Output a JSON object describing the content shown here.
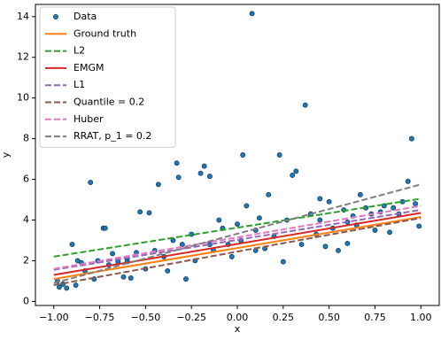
{
  "chart_data": {
    "type": "scatter",
    "xlabel": "x",
    "ylabel": "y",
    "xlim": [
      -1.1,
      1.1
    ],
    "ylim": [
      -0.2,
      14.6
    ],
    "xticks": [
      {
        "value": -1,
        "label": "−1.00"
      },
      {
        "value": -0.75,
        "label": "−0.75"
      },
      {
        "value": -0.5,
        "label": "−0.50"
      },
      {
        "value": -0.25,
        "label": "−0.25"
      },
      {
        "value": 0,
        "label": "0.00"
      },
      {
        "value": 0.25,
        "label": "0.25"
      },
      {
        "value": 0.5,
        "label": "0.50"
      },
      {
        "value": 0.75,
        "label": "0.75"
      },
      {
        "value": 1,
        "label": "1.00"
      }
    ],
    "yticks": [
      0,
      2,
      4,
      6,
      8,
      10,
      12,
      14
    ],
    "legend": "upper left",
    "series": [
      {
        "name": "Data",
        "type": "scatter",
        "color": "#1f77b4",
        "x": [
          -0.98,
          -0.97,
          -0.95,
          -0.93,
          -0.9,
          -0.88,
          -0.85,
          -0.83,
          -0.8,
          -0.78,
          -0.76,
          -0.73,
          -0.72,
          -0.7,
          -0.68,
          -0.65,
          -0.62,
          -0.6,
          -0.58,
          -0.55,
          -0.53,
          -0.5,
          -0.48,
          -0.45,
          -0.43,
          -0.4,
          -0.38,
          -0.35,
          -0.33,
          -0.32,
          -0.3,
          -0.28,
          -0.25,
          -0.23,
          -0.2,
          -0.18,
          -0.15,
          -0.13,
          -0.1,
          -0.08,
          -0.05,
          -0.03,
          0.0,
          0.02,
          0.03,
          0.05,
          0.08,
          0.1,
          0.12,
          0.15,
          0.17,
          0.2,
          0.23,
          0.25,
          0.27,
          0.3,
          0.32,
          0.35,
          0.37,
          0.4,
          0.43,
          0.45,
          0.48,
          0.5,
          0.52,
          0.55,
          0.58,
          0.6,
          0.63,
          0.65,
          0.67,
          0.7,
          0.73,
          0.75,
          0.78,
          0.8,
          0.83,
          0.85,
          0.88,
          0.9,
          0.93,
          0.95,
          0.97,
          0.99,
          -0.87,
          -0.6,
          0.1,
          0.45,
          -0.15,
          0.6
        ],
        "values": [
          1.0,
          0.7,
          0.85,
          0.65,
          2.8,
          0.8,
          1.9,
          1.5,
          5.85,
          1.1,
          2.0,
          3.6,
          3.6,
          1.8,
          2.35,
          1.95,
          1.2,
          2.1,
          1.15,
          2.4,
          4.4,
          1.6,
          4.35,
          2.5,
          5.75,
          2.2,
          1.5,
          3.0,
          6.8,
          6.1,
          2.8,
          1.1,
          3.3,
          2.0,
          6.3,
          6.65,
          6.15,
          2.5,
          4.0,
          3.6,
          2.8,
          2.2,
          3.8,
          3.0,
          7.2,
          4.7,
          14.15,
          3.5,
          4.1,
          2.6,
          5.25,
          3.2,
          7.2,
          1.95,
          4.0,
          6.2,
          6.4,
          2.8,
          9.65,
          4.3,
          3.3,
          5.05,
          2.7,
          4.9,
          3.6,
          2.5,
          4.5,
          2.85,
          4.2,
          3.75,
          5.25,
          4.6,
          4.3,
          3.5,
          4.4,
          4.7,
          3.4,
          4.6,
          4.3,
          4.9,
          5.9,
          8.0,
          4.8,
          3.7,
          2.0,
          1.95,
          2.5,
          4.0,
          2.8,
          3.9
        ]
      },
      {
        "name": "Ground truth",
        "type": "line",
        "dash": false,
        "color": "#ff7f0e",
        "x": [
          -1,
          1
        ],
        "values": [
          1.1,
          4.15
        ]
      },
      {
        "name": "L2",
        "type": "line",
        "dash": true,
        "color": "#2ca02c",
        "x": [
          -1,
          1
        ],
        "values": [
          2.2,
          5.05
        ]
      },
      {
        "name": "EMGM",
        "type": "line",
        "dash": false,
        "color": "#d62728",
        "x": [
          -1,
          1
        ],
        "values": [
          1.3,
          4.35
        ]
      },
      {
        "name": "L1",
        "type": "line",
        "dash": true,
        "color": "#9467bd",
        "x": [
          -1,
          1
        ],
        "values": [
          1.55,
          4.5
        ]
      },
      {
        "name": "Quantile = 0.2",
        "type": "line",
        "dash": true,
        "color": "#8c564b",
        "x": [
          -1,
          1
        ],
        "values": [
          0.8,
          4.1
        ]
      },
      {
        "name": "Huber",
        "type": "line",
        "dash": true,
        "color": "#e377c2",
        "x": [
          -1,
          1
        ],
        "values": [
          1.6,
          4.7
        ]
      },
      {
        "name": "RRAT, p_1 = 0.2",
        "type": "line",
        "dash": true,
        "color": "#7f7f7f",
        "x": [
          -1,
          1
        ],
        "values": [
          0.9,
          5.75
        ]
      }
    ]
  }
}
